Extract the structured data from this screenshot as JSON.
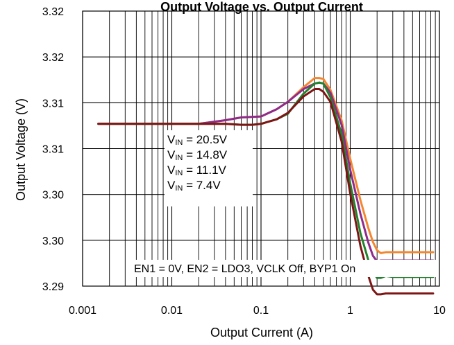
{
  "chart_data": {
    "type": "line",
    "title": "Output Voltage vs. Output Current",
    "xlabel": "Output Current (A)",
    "ylabel": "Output Voltage (V)",
    "x_scale": "log",
    "xlim": [
      0.001,
      10
    ],
    "ylim": [
      3.29,
      3.32
    ],
    "x_ticks": [
      {
        "value": 0.001,
        "label": "0.001"
      },
      {
        "value": 0.01,
        "label": "0.01"
      },
      {
        "value": 0.1,
        "label": "0.1"
      },
      {
        "value": 1,
        "label": "1"
      },
      {
        "value": 10,
        "label": "10"
      }
    ],
    "y_ticks": [
      {
        "value": 3.29,
        "label": "3.29"
      },
      {
        "value": 3.295,
        "label": "3.30"
      },
      {
        "value": 3.3,
        "label": "3.30"
      },
      {
        "value": 3.305,
        "label": "3.31"
      },
      {
        "value": 3.31,
        "label": "3.31"
      },
      {
        "value": 3.315,
        "label": "3.32"
      },
      {
        "value": 3.32,
        "label": "3.32"
      }
    ],
    "grid": true,
    "series": [
      {
        "name": "20.5V",
        "color": "#F4862F",
        "x": [
          0.0015,
          0.005,
          0.01,
          0.02,
          0.04,
          0.06,
          0.1,
          0.15,
          0.2,
          0.3,
          0.4,
          0.45,
          0.5,
          0.6,
          0.8,
          1,
          1.3,
          1.6,
          1.8,
          2,
          2.2,
          2.5,
          3,
          5,
          8.5
        ],
        "y": [
          3.3077,
          3.3077,
          3.3077,
          3.3077,
          3.3081,
          3.3084,
          3.3085,
          3.3093,
          3.3101,
          3.3117,
          3.3127,
          3.3127,
          3.3126,
          3.3114,
          3.3081,
          3.3039,
          3.2994,
          3.2963,
          3.2948,
          3.2939,
          3.2936,
          3.2937,
          3.2937,
          3.2937,
          3.2937
        ]
      },
      {
        "name": "14.8V",
        "color": "#8E2B8B",
        "x": [
          0.0015,
          0.005,
          0.01,
          0.02,
          0.04,
          0.06,
          0.1,
          0.15,
          0.2,
          0.3,
          0.4,
          0.45,
          0.5,
          0.6,
          0.8,
          1,
          1.3,
          1.6,
          1.8,
          2,
          2.2,
          2.5,
          3,
          5,
          8.5
        ],
        "y": [
          3.3077,
          3.3077,
          3.3077,
          3.3077,
          3.3081,
          3.3084,
          3.3085,
          3.3093,
          3.3101,
          3.3115,
          3.3121,
          3.3122,
          3.3121,
          3.3111,
          3.3076,
          3.3027,
          3.2979,
          3.2947,
          3.2933,
          3.2927,
          3.2928,
          3.2928,
          3.2928,
          3.2928,
          3.2928
        ]
      },
      {
        "name": "11.1V",
        "color": "#22822C",
        "x": [
          0.0015,
          0.005,
          0.01,
          0.02,
          0.04,
          0.06,
          0.08,
          0.1,
          0.15,
          0.2,
          0.3,
          0.4,
          0.45,
          0.5,
          0.6,
          0.8,
          1,
          1.3,
          1.6,
          1.8,
          2,
          2.2,
          2.5,
          3,
          5,
          8.5
        ],
        "y": [
          3.3077,
          3.3077,
          3.3077,
          3.3077,
          3.3077,
          3.3076,
          3.3076,
          3.3077,
          3.3082,
          3.3088,
          3.311,
          3.3121,
          3.3122,
          3.3121,
          3.3106,
          3.3066,
          3.3012,
          3.2958,
          3.2928,
          3.2915,
          3.2909,
          3.2909,
          3.2911,
          3.291,
          3.291,
          3.291
        ]
      },
      {
        "name": "7.4V",
        "color": "#7E1515",
        "x": [
          0.0015,
          0.005,
          0.01,
          0.02,
          0.04,
          0.06,
          0.08,
          0.1,
          0.15,
          0.2,
          0.3,
          0.4,
          0.45,
          0.5,
          0.6,
          0.8,
          1,
          1.3,
          1.6,
          1.8,
          2,
          2.2,
          2.5,
          3,
          5,
          8.5
        ],
        "y": [
          3.3077,
          3.3077,
          3.3077,
          3.3077,
          3.3077,
          3.3076,
          3.3076,
          3.3077,
          3.3082,
          3.3089,
          3.3107,
          3.3115,
          3.3115,
          3.3112,
          3.3101,
          3.3058,
          3.3001,
          3.2944,
          3.2911,
          3.2896,
          3.2891,
          3.2891,
          3.2892,
          3.2892,
          3.2892,
          3.2892
        ]
      }
    ],
    "legend": {
      "position": "left-middle",
      "entries": [
        {
          "prefix": "V",
          "subscript": "IN",
          "suffix": " = 20.5V",
          "color": "#F4862F"
        },
        {
          "prefix": "V",
          "subscript": "IN",
          "suffix": " = 14.8V",
          "color": "#8E2B8B"
        },
        {
          "prefix": "V",
          "subscript": "IN",
          "suffix": " = 11.1V",
          "color": "#22822C"
        },
        {
          "prefix": "V",
          "subscript": "IN",
          "suffix": " = 7.4V",
          "color": "#7E1515"
        }
      ]
    },
    "annotation": "EN1 = 0V, EN2 = LDO3, VCLK Off, BYP1 On"
  }
}
